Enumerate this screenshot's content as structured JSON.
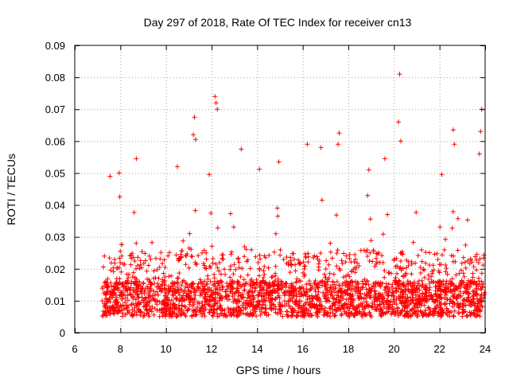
{
  "chart_data": {
    "type": "scatter",
    "title": "Day 297 of 2018, Rate Of TEC Index for receiver cn13",
    "xlabel": "GPS time / hours",
    "ylabel": "ROTI / TECUs",
    "xlim": [
      6,
      24
    ],
    "ylim": [
      0,
      0.09
    ],
    "xticks": [
      6,
      8,
      10,
      12,
      14,
      16,
      18,
      20,
      22,
      24
    ],
    "xtick_labels": [
      "6",
      "8",
      "10",
      "12",
      "14",
      "16",
      "18",
      "20",
      "22",
      "24"
    ],
    "yticks": [
      0,
      0.01,
      0.02,
      0.03,
      0.04,
      0.05,
      0.06,
      0.07,
      0.08,
      0.09
    ],
    "ytick_labels": [
      "0",
      "0.01",
      "0.02",
      "0.03",
      "0.04",
      "0.05",
      "0.06",
      "0.07",
      "0.08",
      "0.09"
    ],
    "grid": true,
    "marker": "+",
    "color": "#ff0000",
    "data_range": {
      "x_start": 7.2,
      "x_end": 24.0
    },
    "notable_points": [
      {
        "x": 20.25,
        "y": 0.081
      },
      {
        "x": 12.15,
        "y": 0.074
      },
      {
        "x": 12.2,
        "y": 0.072
      },
      {
        "x": 12.25,
        "y": 0.07
      },
      {
        "x": 23.85,
        "y": 0.07
      },
      {
        "x": 11.25,
        "y": 0.0675
      },
      {
        "x": 20.2,
        "y": 0.066
      },
      {
        "x": 11.2,
        "y": 0.062
      },
      {
        "x": 11.3,
        "y": 0.0605
      },
      {
        "x": 22.6,
        "y": 0.0635
      },
      {
        "x": 23.8,
        "y": 0.063
      },
      {
        "x": 16.2,
        "y": 0.059
      },
      {
        "x": 17.6,
        "y": 0.0625
      },
      {
        "x": 17.55,
        "y": 0.059
      },
      {
        "x": 13.3,
        "y": 0.0575
      },
      {
        "x": 16.8,
        "y": 0.058
      },
      {
        "x": 20.3,
        "y": 0.06
      },
      {
        "x": 22.65,
        "y": 0.059
      },
      {
        "x": 23.75,
        "y": 0.056
      },
      {
        "x": 8.7,
        "y": 0.0545
      },
      {
        "x": 19.6,
        "y": 0.0545
      },
      {
        "x": 14.95,
        "y": 0.0535
      },
      {
        "x": 10.5,
        "y": 0.052
      },
      {
        "x": 14.1,
        "y": 0.0512
      },
      {
        "x": 7.95,
        "y": 0.05
      },
      {
        "x": 11.9,
        "y": 0.0495
      },
      {
        "x": 22.1,
        "y": 0.0495
      },
      {
        "x": 7.55,
        "y": 0.049
      },
      {
        "x": 18.9,
        "y": 0.051
      }
    ],
    "dense_band": {
      "x_from": 7.2,
      "x_to": 24.0,
      "y_core": [
        0.005,
        0.02
      ],
      "y_floor": 0.003
    }
  }
}
